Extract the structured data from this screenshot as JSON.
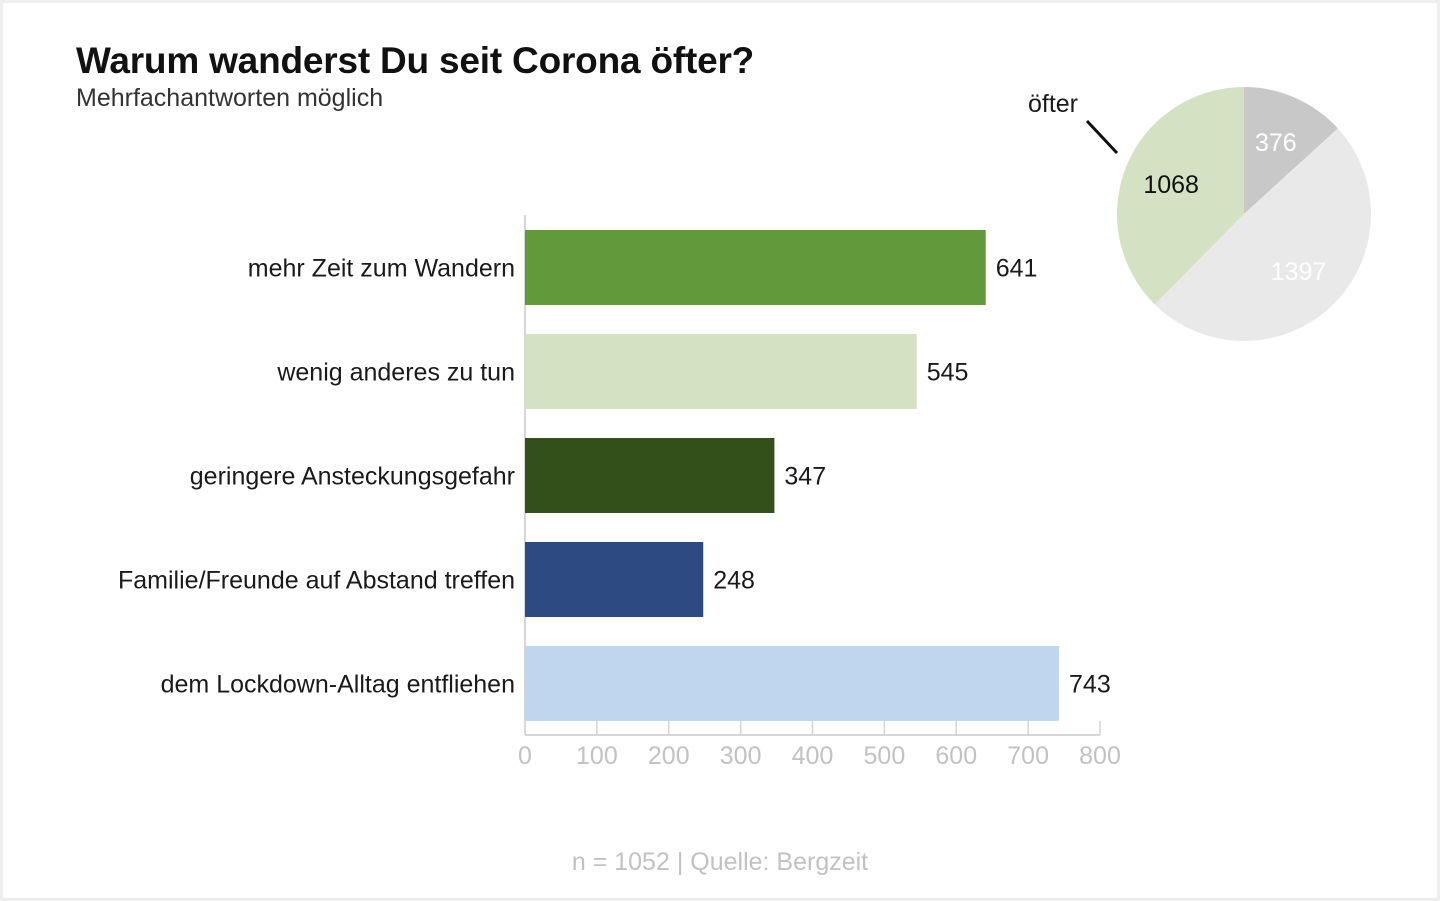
{
  "title": "Warum wanderst Du seit Corona öfter?",
  "subtitle": "Mehrfachantworten möglich",
  "source": "n = 1052 | Quelle: Bergzeit",
  "chart_data": [
    {
      "type": "bar",
      "orientation": "horizontal",
      "categories": [
        "mehr Zeit zum Wandern",
        "wenig anderes zu tun",
        "geringere Ansteckungsgefahr",
        "Familie/Freunde auf Abstand treffen",
        "dem Lockdown-Alltag entfliehen"
      ],
      "values": [
        641,
        545,
        347,
        248,
        743
      ],
      "colors": [
        "#62993b",
        "#d5e1c3",
        "#33501a",
        "#2d4b82",
        "#c0d5ee"
      ],
      "xlim": [
        0,
        800
      ],
      "xticks": [
        0,
        100,
        200,
        300,
        400,
        500,
        600,
        700,
        800
      ],
      "tick_color": "#c2c2c2",
      "value_labels": true
    },
    {
      "type": "pie",
      "labels": [
        "öfter",
        "",
        ""
      ],
      "values": [
        1068,
        376,
        1397
      ],
      "colors": [
        "#d5e1c3",
        "#c8c8c8",
        "#e9e9e9"
      ],
      "label_colors": [
        "#111111",
        "#ffffff",
        "#ffffff"
      ],
      "annotation": "öfter"
    }
  ]
}
